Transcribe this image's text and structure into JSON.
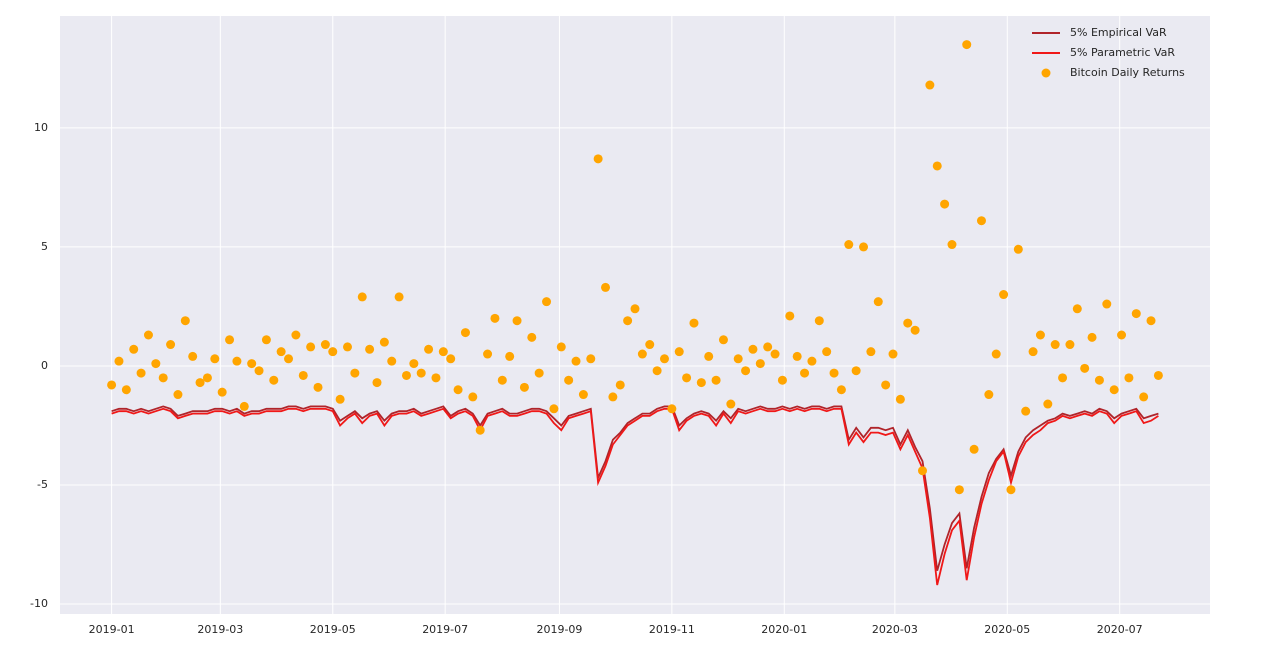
{
  "chart_data": {
    "type": "line",
    "x": [
      0,
      4,
      8,
      12,
      16,
      20,
      24,
      28,
      32,
      36,
      40,
      44,
      48,
      52,
      56,
      60,
      64,
      68,
      72,
      76,
      80,
      84,
      88,
      92,
      96,
      100,
      104,
      108,
      112,
      116,
      120,
      124,
      128,
      132,
      136,
      140,
      144,
      148,
      152,
      156,
      160,
      164,
      168,
      172,
      176,
      180,
      184,
      188,
      192,
      196,
      200,
      204,
      208,
      212,
      216,
      220,
      224,
      228,
      232,
      236,
      240,
      244,
      248,
      252,
      256,
      260,
      264,
      268,
      272,
      276,
      280,
      284,
      288,
      292,
      296,
      300,
      304,
      308,
      312,
      316,
      320,
      324,
      328,
      332,
      336,
      340,
      344,
      348,
      352,
      356,
      360,
      364,
      368,
      372,
      376,
      380,
      384,
      388,
      392,
      396,
      400,
      404,
      408,
      412,
      416,
      420,
      424,
      428,
      432,
      436,
      440,
      444,
      448,
      452,
      456,
      460,
      464,
      468,
      472,
      476,
      480,
      484,
      488,
      492,
      496,
      500,
      504,
      508,
      512,
      516,
      520,
      524,
      528,
      532,
      536,
      540,
      544,
      548,
      552,
      556,
      560,
      564,
      568
    ],
    "xlim": [
      -28,
      596
    ],
    "xticks": [
      {
        "value": 0,
        "label": "2019-01"
      },
      {
        "value": 59,
        "label": "2019-03"
      },
      {
        "value": 120,
        "label": "2019-05"
      },
      {
        "value": 181,
        "label": "2019-07"
      },
      {
        "value": 243,
        "label": "2019-09"
      },
      {
        "value": 304,
        "label": "2019-11"
      },
      {
        "value": 365,
        "label": "2020-01"
      },
      {
        "value": 425,
        "label": "2020-03"
      },
      {
        "value": 486,
        "label": "2020-05"
      },
      {
        "value": 547,
        "label": "2020-07"
      }
    ],
    "ylim": [
      -10.42,
      14.7
    ],
    "yticks": [
      -10,
      -5,
      0,
      5,
      10
    ],
    "grid": true,
    "legend": "upper right",
    "series": [
      {
        "name": "5% Empirical VaR",
        "style": "line",
        "color": "#b0242a",
        "values": [
          -1.9,
          -1.8,
          -1.8,
          -1.9,
          -1.8,
          -1.9,
          -1.8,
          -1.7,
          -1.8,
          -2.1,
          -2.0,
          -1.9,
          -1.9,
          -1.9,
          -1.8,
          -1.8,
          -1.9,
          -1.8,
          -2.0,
          -1.9,
          -1.9,
          -1.8,
          -1.8,
          -1.8,
          -1.7,
          -1.7,
          -1.8,
          -1.7,
          -1.7,
          -1.7,
          -1.8,
          -2.3,
          -2.1,
          -1.9,
          -2.2,
          -2.0,
          -1.9,
          -2.3,
          -2.0,
          -1.9,
          -1.9,
          -1.8,
          -2.0,
          -1.9,
          -1.8,
          -1.7,
          -2.1,
          -1.9,
          -1.8,
          -2.0,
          -2.5,
          -2.0,
          -1.9,
          -1.8,
          -2.0,
          -2.0,
          -1.9,
          -1.8,
          -1.8,
          -1.9,
          -2.2,
          -2.5,
          -2.1,
          -2.0,
          -1.9,
          -1.8,
          -4.7,
          -4.0,
          -3.1,
          -2.8,
          -2.4,
          -2.2,
          -2.0,
          -2.0,
          -1.8,
          -1.7,
          -1.7,
          -2.5,
          -2.2,
          -2.0,
          -1.9,
          -2.0,
          -2.3,
          -1.9,
          -2.2,
          -1.8,
          -1.9,
          -1.8,
          -1.7,
          -1.8,
          -1.8,
          -1.7,
          -1.8,
          -1.7,
          -1.8,
          -1.7,
          -1.7,
          -1.8,
          -1.7,
          -1.7,
          -3.1,
          -2.6,
          -3.0,
          -2.6,
          -2.6,
          -2.7,
          -2.6,
          -3.3,
          -2.7,
          -3.4,
          -4.0,
          -6.0,
          -8.6,
          -7.5,
          -6.6,
          -6.2,
          -8.5,
          -6.8,
          -5.5,
          -4.5,
          -3.9,
          -3.5,
          -4.6,
          -3.6,
          -3.0,
          -2.7,
          -2.5,
          -2.3,
          -2.2,
          -2.0,
          -2.1,
          -2.0,
          -1.9,
          -2.0,
          -1.8,
          -1.9,
          -2.2,
          -2.0,
          -1.9,
          -1.8,
          -2.2,
          -2.1,
          -2.0
        ]
      },
      {
        "name": "5% Parametric VaR",
        "style": "line",
        "color": "#f01818",
        "values": [
          -2.0,
          -1.9,
          -1.9,
          -2.0,
          -1.9,
          -2.0,
          -1.9,
          -1.8,
          -1.9,
          -2.2,
          -2.1,
          -2.0,
          -2.0,
          -2.0,
          -1.9,
          -1.9,
          -2.0,
          -1.9,
          -2.1,
          -2.0,
          -2.0,
          -1.9,
          -1.9,
          -1.9,
          -1.8,
          -1.8,
          -1.9,
          -1.8,
          -1.8,
          -1.8,
          -1.9,
          -2.5,
          -2.2,
          -2.0,
          -2.4,
          -2.1,
          -2.0,
          -2.5,
          -2.1,
          -2.0,
          -2.0,
          -1.9,
          -2.1,
          -2.0,
          -1.9,
          -1.8,
          -2.2,
          -2.0,
          -1.9,
          -2.1,
          -2.7,
          -2.1,
          -2.0,
          -1.9,
          -2.1,
          -2.1,
          -2.0,
          -1.9,
          -1.9,
          -2.0,
          -2.4,
          -2.7,
          -2.2,
          -2.1,
          -2.0,
          -1.9,
          -4.9,
          -4.2,
          -3.3,
          -2.9,
          -2.5,
          -2.3,
          -2.1,
          -2.1,
          -1.9,
          -1.8,
          -1.8,
          -2.7,
          -2.3,
          -2.1,
          -2.0,
          -2.1,
          -2.5,
          -2.0,
          -2.4,
          -1.9,
          -2.0,
          -1.9,
          -1.8,
          -1.9,
          -1.9,
          -1.8,
          -1.9,
          -1.8,
          -1.9,
          -1.8,
          -1.8,
          -1.9,
          -1.8,
          -1.8,
          -3.3,
          -2.8,
          -3.2,
          -2.8,
          -2.8,
          -2.9,
          -2.8,
          -3.5,
          -2.9,
          -3.6,
          -4.3,
          -6.4,
          -9.2,
          -7.9,
          -6.9,
          -6.5,
          -9.0,
          -7.2,
          -5.8,
          -4.8,
          -4.0,
          -3.6,
          -4.9,
          -3.8,
          -3.2,
          -2.9,
          -2.7,
          -2.4,
          -2.3,
          -2.1,
          -2.2,
          -2.1,
          -2.0,
          -2.1,
          -1.9,
          -2.0,
          -2.4,
          -2.1,
          -2.0,
          -1.9,
          -2.4,
          -2.3,
          -2.1
        ]
      },
      {
        "name": "Bitcoin Daily Returns",
        "style": "scatter",
        "color": "#ffa500",
        "values": [
          -0.8,
          0.2,
          -1.0,
          0.7,
          -0.3,
          1.3,
          0.1,
          -0.5,
          0.9,
          -1.2,
          1.9,
          0.4,
          -0.7,
          -0.5,
          0.3,
          -1.1,
          1.1,
          0.2,
          -1.7,
          0.1,
          -0.2,
          1.1,
          -0.6,
          0.6,
          0.3,
          1.3,
          -0.4,
          0.8,
          -0.9,
          0.9,
          0.6,
          -1.4,
          0.8,
          -0.3,
          2.9,
          0.7,
          -0.7,
          1.0,
          0.2,
          2.9,
          -0.4,
          0.1,
          -0.3,
          0.7,
          -0.5,
          0.6,
          0.3,
          -1.0,
          1.4,
          -1.3,
          -2.7,
          0.5,
          2.0,
          -0.6,
          0.4,
          1.9,
          -0.9,
          1.2,
          -0.3,
          2.7,
          -1.8,
          0.8,
          -0.6,
          0.2,
          -1.2,
          0.3,
          8.7,
          3.3,
          -1.3,
          -0.8,
          1.9,
          2.4,
          0.5,
          0.9,
          -0.2,
          0.3,
          -1.8,
          0.6,
          -0.5,
          1.8,
          -0.7,
          0.4,
          -0.6,
          1.1,
          -1.6,
          0.3,
          -0.2,
          0.7,
          0.1,
          0.8,
          0.5,
          -0.6,
          2.1,
          0.4,
          -0.3,
          0.2,
          1.9,
          0.6,
          -0.3,
          -1.0,
          5.1,
          -0.2,
          5.0,
          0.6,
          2.7,
          -0.8,
          0.5,
          -1.4,
          1.8,
          1.5,
          -4.4,
          11.8,
          8.4,
          6.8,
          5.1,
          -5.2,
          13.5,
          -3.5,
          6.1,
          -1.2,
          0.5,
          3.0,
          -5.2,
          4.9,
          -1.9,
          0.6,
          1.3,
          -1.6,
          0.9,
          -0.5,
          0.9,
          2.4,
          -0.1,
          1.2,
          -0.6,
          2.6,
          -1.0,
          1.3,
          -0.5,
          2.2,
          -1.3,
          1.9,
          -0.4
        ]
      }
    ]
  }
}
